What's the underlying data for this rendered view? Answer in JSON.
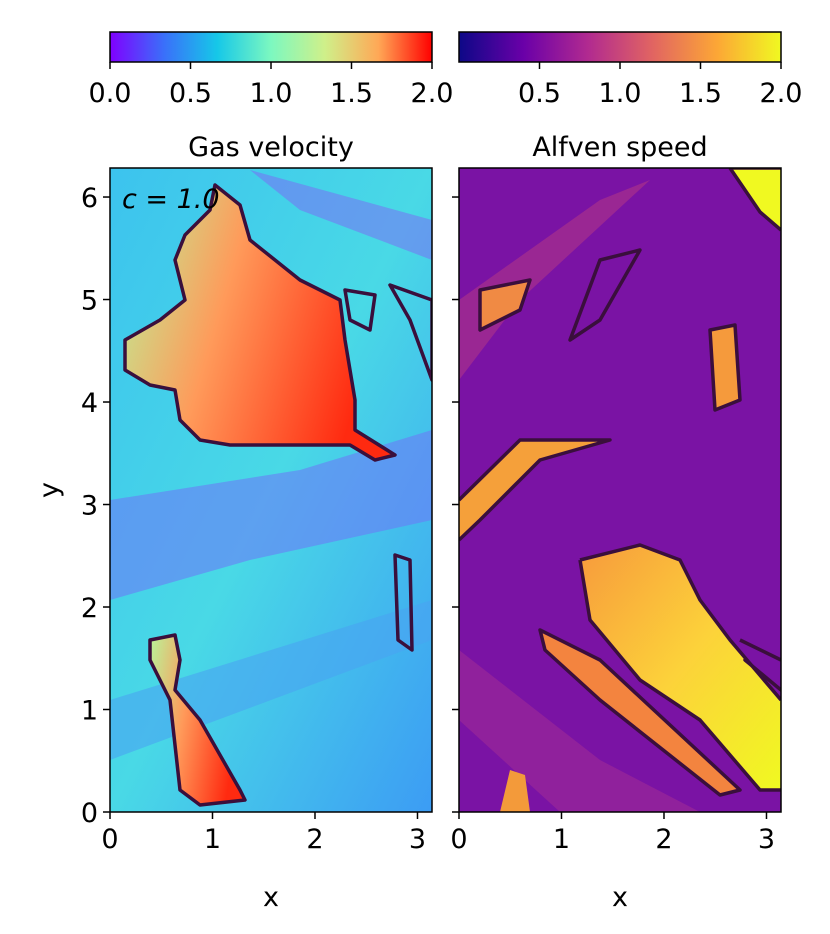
{
  "chart_data": [
    {
      "type": "heatmap",
      "title": "Gas velocity",
      "xlabel": "x",
      "ylabel": "y",
      "annotation": "c = 1.0",
      "xlim": [
        0,
        3.1416
      ],
      "ylim": [
        0,
        6.2832
      ],
      "xticks": [
        0,
        1,
        2,
        3
      ],
      "yticks": [
        0,
        1,
        2,
        3,
        4,
        5,
        6
      ],
      "colorbar": {
        "lim": [
          0,
          2
        ],
        "ticks": [
          {
            "value": 0,
            "label": "0.0"
          },
          0.5,
          {
            "value": 1,
            "label": "1.0"
          },
          1.5,
          {
            "value": 2,
            "label": "2.0"
          }
        ],
        "colors": [
          "#8000ff",
          "#3a6ffa",
          "#16c8e8",
          "#7cf8c0",
          "#cff08a",
          "#ffa856",
          "#ff0000"
        ]
      }
    },
    {
      "type": "heatmap",
      "title": "Alfven speed",
      "xlabel": "x",
      "sharey": true,
      "xlim": [
        0,
        3.1416
      ],
      "ylim": [
        0,
        6.2832
      ],
      "xticks": [
        0,
        1,
        2,
        3
      ],
      "yticks": [
        0,
        1,
        2,
        3,
        4,
        5,
        6
      ],
      "colorbar": {
        "lim": [
          0,
          2
        ],
        "ticks": [
          0.5,
          {
            "value": 1,
            "label": "1.0"
          },
          1.5,
          {
            "value": 2,
            "label": "2.0"
          }
        ],
        "colors": [
          "#0d0887",
          "#6a00a8",
          "#b12a90",
          "#e16462",
          "#fca636",
          "#f0f921"
        ]
      }
    }
  ]
}
